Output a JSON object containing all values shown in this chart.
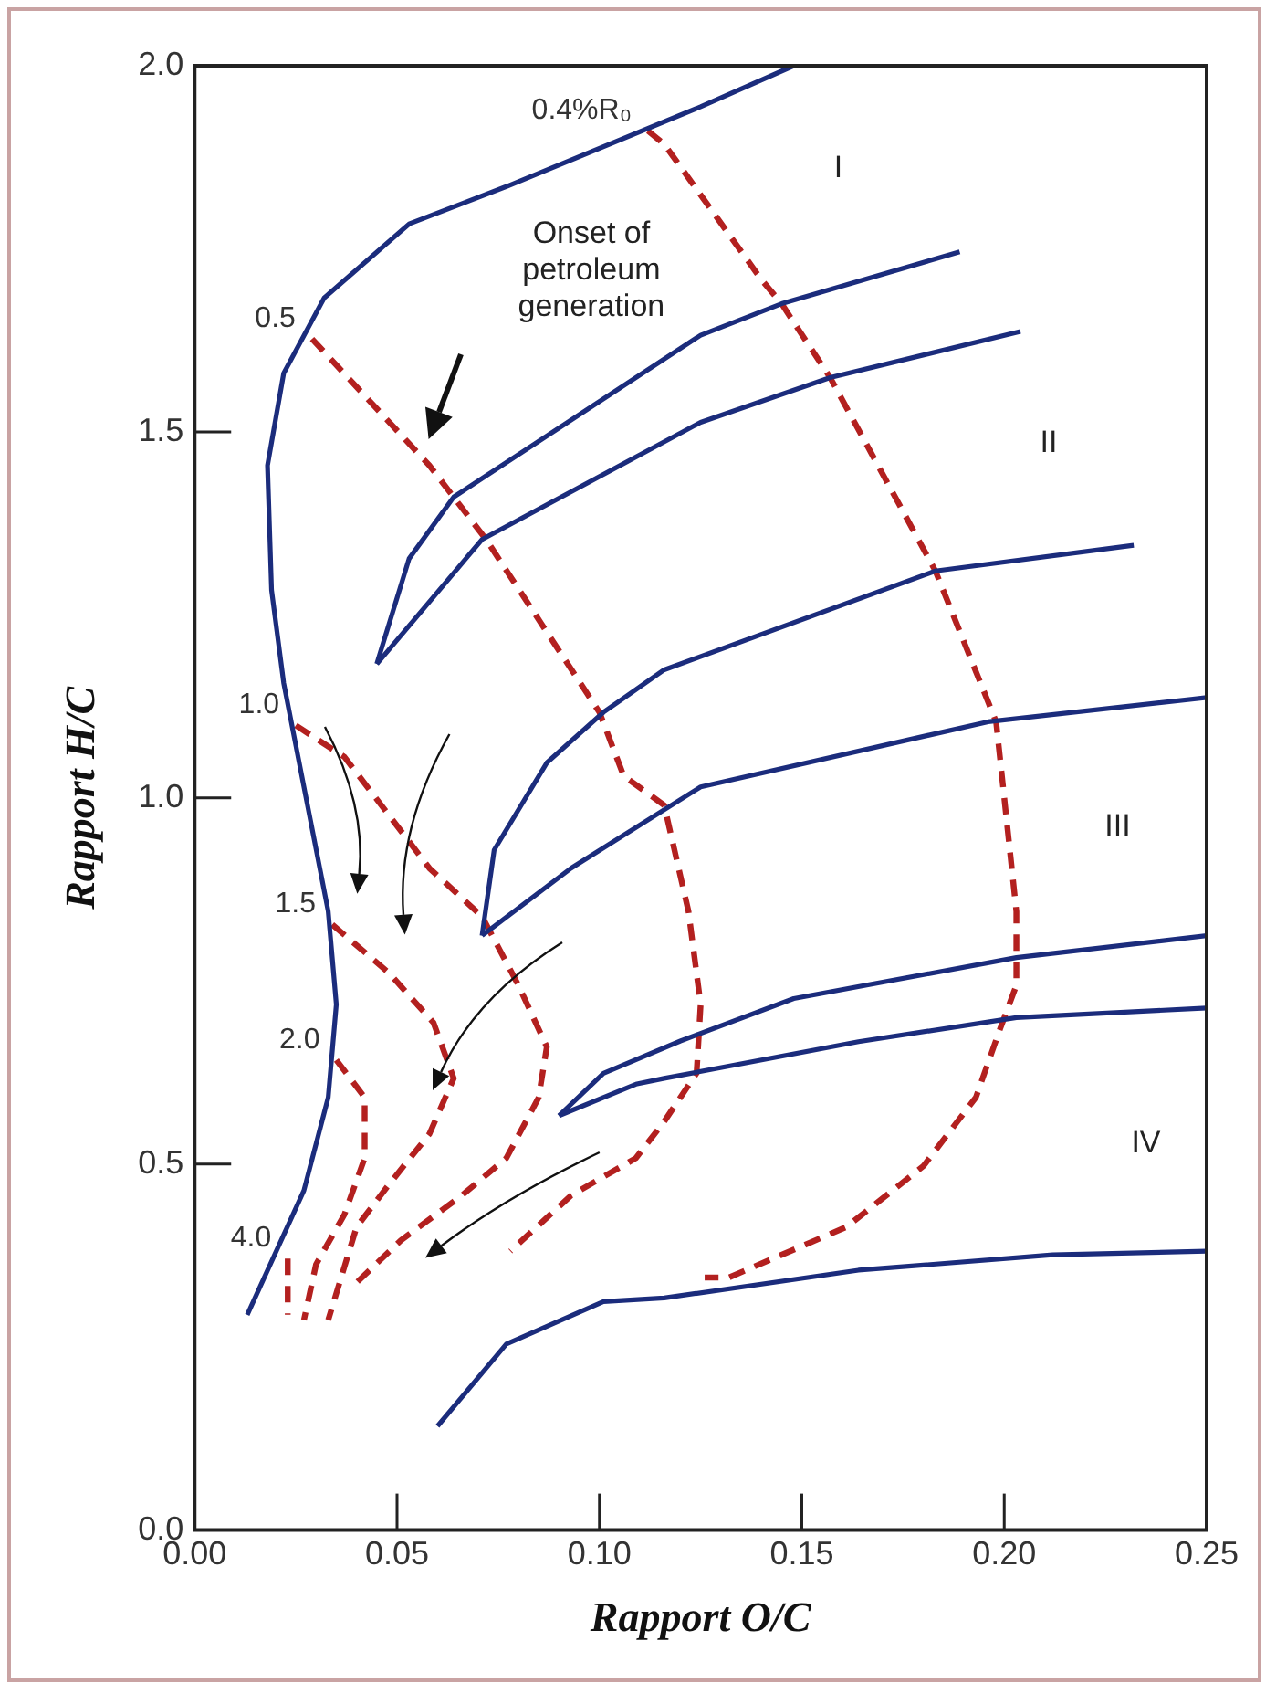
{
  "chart_data": {
    "type": "line",
    "xlabel": "Rapport O/C",
    "ylabel": "Rapport H/C",
    "xlim": [
      0,
      0.25
    ],
    "ylim": [
      0,
      2
    ],
    "xticks": [
      {
        "value": 0,
        "label": "0.00"
      },
      {
        "value": 0.05,
        "label": "0.05"
      },
      {
        "value": 0.1,
        "label": "0.10"
      },
      {
        "value": 0.15,
        "label": "0.15"
      },
      {
        "value": 0.2,
        "label": "0.20"
      },
      {
        "value": 0.25,
        "label": "0.25"
      }
    ],
    "yticks": [
      {
        "value": 0,
        "label": "0.0"
      },
      {
        "value": 0.5,
        "label": "0.5"
      },
      {
        "value": 1,
        "label": "1.0"
      },
      {
        "value": 1.5,
        "label": "1.5"
      },
      {
        "value": 2,
        "label": "2.0"
      }
    ],
    "grid": false,
    "legend": false,
    "marker": "none",
    "annotations": [
      "I",
      "II",
      "III",
      "IV",
      "Onset of\npetroleum\ngeneration"
    ],
    "series": [
      {
        "color": "#1b2c7c",
        "line_style": "solid",
        "x": [
          0.013,
          0.027,
          0.033,
          0.035,
          0.033,
          0.027,
          0.022,
          0.019,
          0.018,
          0.022,
          0.032,
          0.053,
          0.077,
          0.125,
          0.148
        ],
        "values": [
          0.294,
          0.464,
          0.591,
          0.718,
          0.845,
          1.015,
          1.157,
          1.284,
          1.454,
          1.58,
          1.683,
          1.784,
          1.835,
          1.944,
          2.0
        ]
      },
      {
        "color": "#1b2c7c",
        "line_style": "solid",
        "x": [
          0.045,
          0.053,
          0.064,
          0.125,
          0.145,
          0.189
        ],
        "values": [
          1.183,
          1.327,
          1.411,
          1.632,
          1.675,
          1.746
        ]
      },
      {
        "color": "#1b2c7c",
        "line_style": "solid",
        "x": [
          0.045,
          0.071,
          0.125,
          0.157,
          0.204
        ],
        "values": [
          1.183,
          1.353,
          1.513,
          1.574,
          1.637
        ]
      },
      {
        "color": "#1b2c7c",
        "line_style": "solid",
        "x": [
          0.071,
          0.074,
          0.087,
          0.101,
          0.116,
          0.183,
          0.232
        ],
        "values": [
          0.812,
          0.929,
          1.048,
          1.117,
          1.175,
          1.31,
          1.345
        ]
      },
      {
        "color": "#1b2c7c",
        "line_style": "solid",
        "x": [
          0.071,
          0.093,
          0.125,
          0.196,
          0.25
        ],
        "values": [
          0.812,
          0.904,
          1.015,
          1.104,
          1.137
        ]
      },
      {
        "color": "#1b2c7c",
        "line_style": "solid",
        "x": [
          0.09,
          0.101,
          0.12,
          0.148,
          0.203,
          0.25
        ],
        "values": [
          0.566,
          0.624,
          0.668,
          0.726,
          0.782,
          0.812
        ]
      },
      {
        "color": "#1b2c7c",
        "line_style": "solid",
        "x": [
          0.09,
          0.109,
          0.116,
          0.164,
          0.203,
          0.25
        ],
        "values": [
          0.566,
          0.609,
          0.617,
          0.667,
          0.7,
          0.713
        ]
      },
      {
        "color": "#1b2c7c",
        "line_style": "solid",
        "x": [
          0.06,
          0.077,
          0.101,
          0.116,
          0.164,
          0.212,
          0.25
        ],
        "values": [
          0.142,
          0.254,
          0.312,
          0.317,
          0.355,
          0.376,
          0.381
        ]
      },
      {
        "name": "0.4%R₀",
        "color": "#b3201f",
        "line_style": "dashed",
        "x": [
          0.112,
          0.116,
          0.14,
          0.145,
          0.157,
          0.183,
          0.198,
          0.203,
          0.203,
          0.199,
          0.193,
          0.18,
          0.161,
          0.132,
          0.126
        ],
        "values": [
          1.911,
          1.893,
          1.708,
          1.675,
          1.574,
          1.31,
          1.104,
          0.845,
          0.744,
          0.685,
          0.591,
          0.497,
          0.414,
          0.345,
          0.345
        ]
      },
      {
        "name": "0.5",
        "color": "#b3201f",
        "line_style": "dashed",
        "x": [
          0.029,
          0.058,
          0.072,
          0.1,
          0.106,
          0.116,
          0.122,
          0.125,
          0.124,
          0.116,
          0.109,
          0.093,
          0.078
        ],
        "values": [
          1.627,
          1.454,
          1.353,
          1.117,
          1.03,
          0.99,
          0.845,
          0.718,
          0.624,
          0.558,
          0.508,
          0.457,
          0.381
        ]
      },
      {
        "name": "1.0",
        "color": "#b3201f",
        "line_style": "dashed",
        "x": [
          0.025,
          0.037,
          0.058,
          0.071,
          0.08,
          0.087,
          0.085,
          0.077,
          0.066,
          0.051,
          0.04
        ],
        "values": [
          1.099,
          1.056,
          0.904,
          0.838,
          0.744,
          0.66,
          0.591,
          0.508,
          0.457,
          0.396,
          0.338
        ]
      },
      {
        "name": "1.5",
        "color": "#b3201f",
        "line_style": "dashed",
        "x": [
          0.034,
          0.048,
          0.059,
          0.064,
          0.058,
          0.048,
          0.04,
          0.033
        ],
        "values": [
          0.827,
          0.761,
          0.693,
          0.617,
          0.541,
          0.472,
          0.414,
          0.287
        ]
      },
      {
        "name": "2.0",
        "color": "#b3201f",
        "line_style": "dashed",
        "x": [
          0.035,
          0.042,
          0.042,
          0.037,
          0.03,
          0.027
        ],
        "values": [
          0.642,
          0.591,
          0.508,
          0.431,
          0.363,
          0.287
        ]
      },
      {
        "name": "4.0",
        "color": "#b3201f",
        "line_style": "dashed",
        "x": [
          0.023,
          0.023
        ],
        "values": [
          0.371,
          0.294
        ]
      }
    ]
  }
}
